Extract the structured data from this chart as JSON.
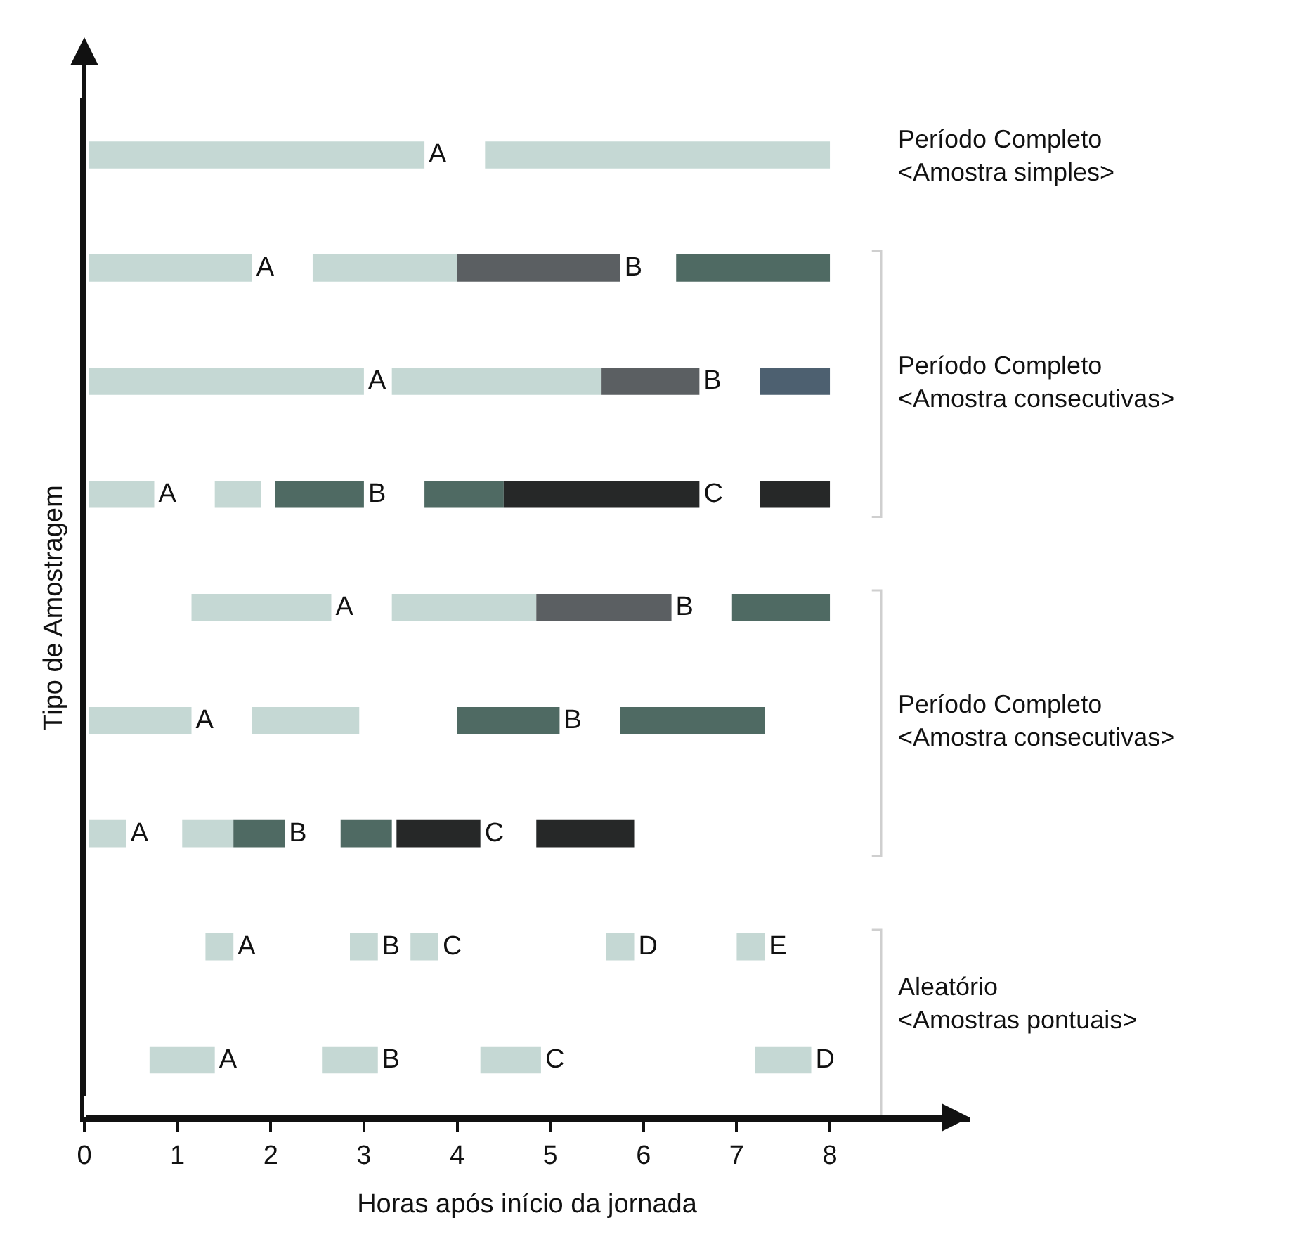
{
  "chart_data": {
    "type": "bar",
    "orientation": "horizontal",
    "xlabel": "Horas após início da jornada",
    "ylabel": "Tipo de Amostragem",
    "categories": [
      null,
      null,
      null,
      null,
      null,
      null,
      null,
      null,
      null
    ],
    "xlim": [
      0,
      9.5
    ],
    "xticks": [
      0,
      1,
      2,
      3,
      4,
      5,
      6,
      7,
      8
    ],
    "tick_labels": "x",
    "series": [
      {
        "base": [
          0.05,
          0.05,
          0.05,
          0.05,
          1.15,
          0.05,
          0.05,
          1.3,
          0.7
        ],
        "values": [
          3.6,
          1.75,
          2.95,
          0.7,
          1.5,
          1.1,
          0.4,
          0.3,
          0.7
        ],
        "colors": [
          "#c5d8d4",
          "#c5d8d4",
          "#c5d8d4",
          "#c5d8d4",
          "#c5d8d4",
          "#c5d8d4",
          "#c5d8d4",
          "#c5d8d4",
          "#c5d8d4"
        ],
        "value_labels": [
          "A",
          "A",
          "A",
          "A",
          "A",
          "A",
          "A",
          "A",
          "A"
        ]
      },
      {
        "base": [
          4.3,
          2.45,
          3.3,
          1.4,
          3.3,
          1.8,
          1.05,
          2.85,
          2.55
        ],
        "values": [
          3.7,
          1.55,
          2.25,
          0.5,
          1.55,
          1.15,
          0.55,
          0.3,
          0.6
        ],
        "colors": [
          "#c5d8d4",
          "#c5d8d4",
          "#c5d8d4",
          "#c5d8d4",
          "#c5d8d4",
          "#c5d8d4",
          "#c5d8d4",
          "#c5d8d4",
          "#c5d8d4"
        ],
        "value_labels": [
          null,
          null,
          null,
          null,
          null,
          null,
          null,
          "B",
          "B"
        ]
      },
      {
        "base": [
          null,
          4.0,
          5.55,
          2.05,
          4.85,
          4.0,
          1.6,
          3.5,
          4.25
        ],
        "values": [
          null,
          1.75,
          1.05,
          0.95,
          1.45,
          1.1,
          0.55,
          0.3,
          0.65
        ],
        "colors": [
          null,
          "#5b5f62",
          "#5b5f62",
          "#4f6a63",
          "#5b5f62",
          "#4f6a63",
          "#4f6a63",
          "#c5d8d4",
          "#c5d8d4"
        ],
        "value_labels": [
          null,
          "B",
          "B",
          "B",
          "B",
          "B",
          "B",
          "C",
          "C"
        ]
      },
      {
        "base": [
          null,
          6.35,
          7.25,
          3.65,
          6.95,
          5.75,
          2.75,
          5.6,
          7.2
        ],
        "values": [
          null,
          1.65,
          0.75,
          0.85,
          1.05,
          1.55,
          0.55,
          0.3,
          0.6
        ],
        "colors": [
          null,
          "#4f6a63",
          "#4d6070",
          "#4f6a63",
          "#4f6a63",
          "#4f6a63",
          "#4f6a63",
          "#c5d8d4",
          "#c5d8d4"
        ],
        "value_labels": [
          null,
          null,
          null,
          null,
          null,
          null,
          null,
          "D",
          "D"
        ]
      },
      {
        "base": [
          null,
          null,
          null,
          4.5,
          null,
          null,
          3.35,
          7.0,
          null
        ],
        "values": [
          null,
          null,
          null,
          2.1,
          null,
          null,
          0.9,
          0.3,
          null
        ],
        "colors": [
          null,
          null,
          null,
          "#262828",
          null,
          null,
          "#262828",
          "#c5d8d4",
          null
        ],
        "value_labels": [
          null,
          null,
          null,
          "C",
          null,
          null,
          "C",
          "E",
          null
        ]
      },
      {
        "base": [
          null,
          null,
          null,
          7.25,
          null,
          null,
          4.85,
          null,
          null
        ],
        "values": [
          null,
          null,
          null,
          0.75,
          null,
          null,
          1.05,
          null,
          null
        ],
        "colors": [
          null,
          null,
          null,
          "#262828",
          null,
          null,
          "#262828",
          null,
          null
        ],
        "value_labels": [
          null,
          null,
          null,
          null,
          null,
          null,
          null,
          null,
          null
        ]
      }
    ],
    "annotations": [
      "Período Completo\n<Amostra simples>",
      "Período Completo\n<Amostra consecutivas>",
      "Período Completo\n<Amostra consecutivas>",
      "Aleatório\n<Amostras pontuais>"
    ]
  }
}
